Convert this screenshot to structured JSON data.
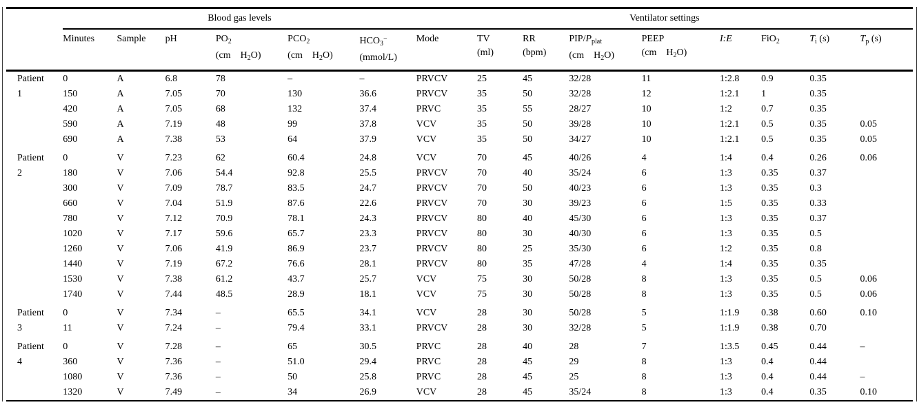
{
  "table": {
    "group_headers": [
      {
        "id": "blood-gas",
        "label": "Blood gas levels",
        "span": 6
      },
      {
        "id": "ventilator",
        "label": "Ventilator settings",
        "span": 9
      }
    ],
    "columns": [
      {
        "id": "minutes",
        "name": [
          {
            "t": "Minutes"
          }
        ]
      },
      {
        "id": "sample",
        "name": [
          {
            "t": "Sample"
          }
        ]
      },
      {
        "id": "ph",
        "name": [
          {
            "t": "pH"
          }
        ]
      },
      {
        "id": "po2",
        "name": [
          {
            "t": "PO"
          },
          {
            "t": "2",
            "sub": true
          }
        ],
        "unit": [
          {
            "t": "(cm"
          },
          {
            "t": "H",
            "gap": true
          },
          {
            "t": "2",
            "sub": true
          },
          {
            "t": "O)"
          }
        ]
      },
      {
        "id": "pco2",
        "name": [
          {
            "t": "PCO"
          },
          {
            "t": "2",
            "sub": true
          }
        ],
        "unit": [
          {
            "t": "(cm"
          },
          {
            "t": "H",
            "gap": true
          },
          {
            "t": "2",
            "sub": true
          },
          {
            "t": "O)"
          }
        ]
      },
      {
        "id": "hco3",
        "name": [
          {
            "t": "HCO"
          },
          {
            "t": "3",
            "sub": true
          },
          {
            "t": "−",
            "sup": true
          }
        ],
        "unit": [
          {
            "t": "(mmol/L)"
          }
        ]
      },
      {
        "id": "mode",
        "name": [
          {
            "t": "Mode"
          }
        ]
      },
      {
        "id": "tv",
        "name": [
          {
            "t": "TV"
          }
        ],
        "unit": [
          {
            "t": "(ml)"
          }
        ]
      },
      {
        "id": "rr",
        "name": [
          {
            "t": "RR"
          }
        ],
        "unit": [
          {
            "t": "(bpm)"
          }
        ]
      },
      {
        "id": "pip_pplat",
        "name": [
          {
            "t": "PIP/"
          },
          {
            "t": "P",
            "i": true
          },
          {
            "t": "plat",
            "sub": true
          }
        ],
        "unit": [
          {
            "t": "(cm"
          },
          {
            "t": "H",
            "gap": true
          },
          {
            "t": "2",
            "sub": true
          },
          {
            "t": "O)"
          }
        ]
      },
      {
        "id": "peep",
        "name": [
          {
            "t": "PEEP"
          }
        ],
        "unit": [
          {
            "t": "(cm"
          },
          {
            "t": "H",
            "gap": true
          },
          {
            "t": "2",
            "sub": true
          },
          {
            "t": "O)"
          }
        ]
      },
      {
        "id": "ie",
        "name": [
          {
            "t": "I:E",
            "i": true
          }
        ]
      },
      {
        "id": "fio2",
        "name": [
          {
            "t": "FiO"
          },
          {
            "t": "2",
            "sub": true
          }
        ]
      },
      {
        "id": "ti",
        "name": [
          {
            "t": "T",
            "i": true
          },
          {
            "t": "i",
            "sub": true
          },
          {
            "t": " (s)"
          }
        ]
      },
      {
        "id": "tp",
        "name": [
          {
            "t": "T",
            "i": true
          },
          {
            "t": "p",
            "sub": true
          },
          {
            "t": " (s)"
          }
        ]
      }
    ],
    "row_groups": [
      {
        "patient": "Patient 1",
        "rows": [
          [
            "0",
            "A",
            "6.8",
            "78",
            "–",
            "–",
            "PRVCV",
            "25",
            "45",
            "32/28",
            "11",
            "1:2.8",
            "0.9",
            "0.35",
            ""
          ],
          [
            "150",
            "A",
            "7.05",
            "70",
            "130",
            "36.6",
            "PRVCV",
            "35",
            "50",
            "32/28",
            "12",
            "1:2.1",
            "1",
            "0.35",
            ""
          ],
          [
            "420",
            "A",
            "7.05",
            "68",
            "132",
            "37.4",
            "PRVC",
            "35",
            "55",
            "28/27",
            "10",
            "1:2",
            "0.7",
            "0.35",
            ""
          ],
          [
            "590",
            "A",
            "7.19",
            "48",
            "99",
            "37.8",
            "VCV",
            "35",
            "50",
            "39/28",
            "10",
            "1:2.1",
            "0.5",
            "0.35",
            "0.05"
          ],
          [
            "690",
            "A",
            "7.38",
            "53",
            "64",
            "37.9",
            "VCV",
            "35",
            "50",
            "34/27",
            "10",
            "1:2.1",
            "0.5",
            "0.35",
            "0.05"
          ]
        ]
      },
      {
        "patient": "Patient 2",
        "rows": [
          [
            "0",
            "V",
            "7.23",
            "62",
            "60.4",
            "24.8",
            "VCV",
            "70",
            "45",
            "40/26",
            "4",
            "1:4",
            "0.4",
            "0.26",
            "0.06"
          ],
          [
            "180",
            "V",
            "7.06",
            "54.4",
            "92.8",
            "25.5",
            "PRVCV",
            "70",
            "40",
            "35/24",
            "6",
            "1:3",
            "0.35",
            "0.37",
            ""
          ],
          [
            "300",
            "V",
            "7.09",
            "78.7",
            "83.5",
            "24.7",
            "PRVCV",
            "70",
            "50",
            "40/23",
            "6",
            "1:3",
            "0.35",
            "0.3",
            ""
          ],
          [
            "660",
            "V",
            "7.04",
            "51.9",
            "87.6",
            "22.6",
            "PRVCV",
            "70",
            "30",
            "39/23",
            "6",
            "1:5",
            "0.35",
            "0.33",
            ""
          ],
          [
            "780",
            "V",
            "7.12",
            "70.9",
            "78.1",
            "24.3",
            "PRVCV",
            "80",
            "40",
            "45/30",
            "6",
            "1:3",
            "0.35",
            "0.37",
            ""
          ],
          [
            "1020",
            "V",
            "7.17",
            "59.6",
            "65.7",
            "23.3",
            "PRVCV",
            "80",
            "30",
            "40/30",
            "6",
            "1:3",
            "0.35",
            "0.5",
            ""
          ],
          [
            "1260",
            "V",
            "7.06",
            "41.9",
            "86.9",
            "23.7",
            "PRVCV",
            "80",
            "25",
            "35/30",
            "6",
            "1:2",
            "0.35",
            "0.8",
            ""
          ],
          [
            "1440",
            "V",
            "7.19",
            "67.2",
            "76.6",
            "28.1",
            "PRVCV",
            "80",
            "35",
            "47/28",
            "4",
            "1:4",
            "0.35",
            "0.35",
            ""
          ],
          [
            "1530",
            "V",
            "7.38",
            "61.2",
            "43.7",
            "25.7",
            "VCV",
            "75",
            "30",
            "50/28",
            "8",
            "1:3",
            "0.35",
            "0.5",
            "0.06"
          ],
          [
            "1740",
            "V",
            "7.44",
            "48.5",
            "28.9",
            "18.1",
            "VCV",
            "75",
            "30",
            "50/28",
            "8",
            "1:3",
            "0.35",
            "0.5",
            "0.06"
          ]
        ]
      },
      {
        "patient": "Patient 3",
        "rows": [
          [
            "0",
            "V",
            "7.34",
            "–",
            "65.5",
            "34.1",
            "VCV",
            "28",
            "30",
            "50/28",
            "5",
            "1:1.9",
            "0.38",
            "0.60",
            "0.10"
          ],
          [
            "11",
            "V",
            "7.24",
            "–",
            "79.4",
            "33.1",
            "PRVCV",
            "28",
            "30",
            "32/28",
            "5",
            "1:1.9",
            "0.38",
            "0.70",
            ""
          ]
        ]
      },
      {
        "patient": "Patient 4",
        "rows": [
          [
            "0",
            "V",
            "7.28",
            "–",
            "65",
            "30.5",
            "PRVC",
            "28",
            "40",
            "28",
            "7",
            "1:3.5",
            "0.45",
            "0.44",
            "–"
          ],
          [
            "360",
            "V",
            "7.36",
            "–",
            "51.0",
            "29.4",
            "PRVC",
            "28",
            "45",
            "29",
            "8",
            "1:3",
            "0.4",
            "0.44",
            ""
          ],
          [
            "1080",
            "V",
            "7.36",
            "–",
            "50",
            "25.8",
            "PRVC",
            "28",
            "45",
            "25",
            "8",
            "1:3",
            "0.4",
            "0.44",
            "–"
          ],
          [
            "1320",
            "V",
            "7.49",
            "–",
            "34",
            "26.9",
            "VCV",
            "28",
            "45",
            "35/24",
            "8",
            "1:3",
            "0.4",
            "0.35",
            "0.10"
          ]
        ]
      }
    ]
  }
}
